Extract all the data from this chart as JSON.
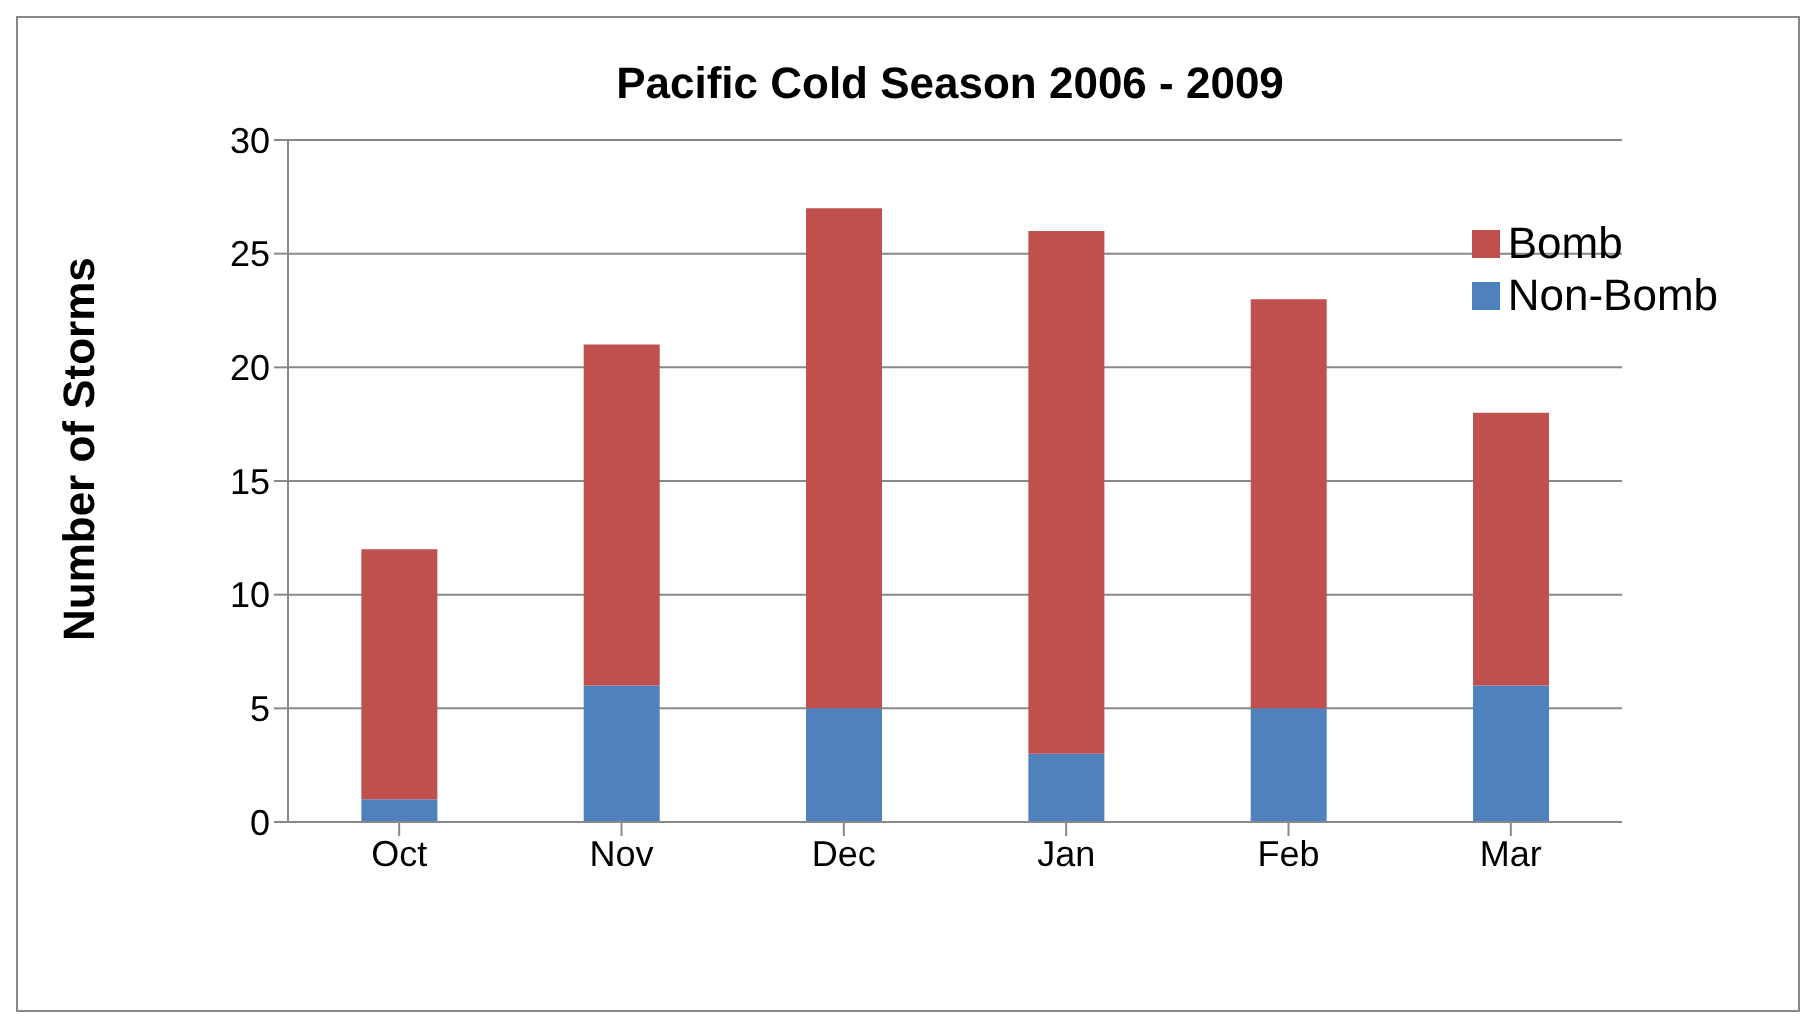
{
  "chart_data": {
    "type": "bar",
    "title": "Pacific Cold Season 2006 - 2009",
    "ylabel": "Number of Storms",
    "categories": [
      "Oct",
      "Nov",
      "Dec",
      "Jan",
      "Feb",
      "Mar"
    ],
    "series": [
      {
        "name": "Non-Bomb",
        "color": "#4f81bd",
        "values": [
          1,
          6,
          5,
          3,
          5,
          6
        ]
      },
      {
        "name": "Bomb",
        "color": "#c0504d",
        "values": [
          11,
          15,
          22,
          23,
          18,
          12
        ]
      }
    ],
    "stacked": true,
    "ylim": [
      0,
      30
    ],
    "yticks": [
      0,
      5,
      10,
      15,
      20,
      25,
      30
    ],
    "grid": "y",
    "legend": "top right"
  }
}
